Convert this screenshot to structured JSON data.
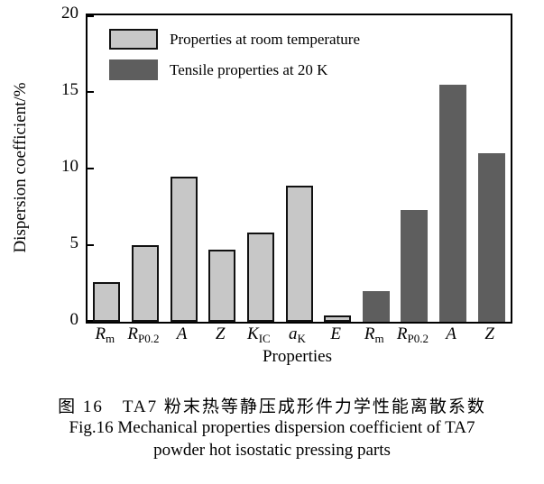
{
  "figure": {
    "caption_zh": "图 16　TA7 粉末热等静压成形件力学性能离散系数",
    "caption_en_line1": "Fig.16 Mechanical properties dispersion coefficient of TA7",
    "caption_en_line2": "powder hot isostatic pressing parts"
  },
  "chart_data": {
    "type": "bar",
    "title": "",
    "xlabel": "Properties",
    "ylabel": "Dispersion coefficient/%",
    "ylim": [
      0,
      20
    ],
    "yticks": [
      0,
      5,
      10,
      15,
      20
    ],
    "grid": false,
    "legend_position": "top-left-inside",
    "legend": [
      {
        "label": "Properties at room temperature",
        "fill": "#c7c7c7",
        "border": "#111111"
      },
      {
        "label": "Tensile properties at 20 K",
        "fill": "#5e5e5e",
        "border": "none"
      }
    ],
    "bars": [
      {
        "label_main": "R",
        "label_sub": "m",
        "value": 2.6,
        "series": 0
      },
      {
        "label_main": "R",
        "label_sub": "P0.2",
        "value": 5.0,
        "series": 0
      },
      {
        "label_main": "A",
        "label_sub": "",
        "value": 9.5,
        "series": 0
      },
      {
        "label_main": "Z",
        "label_sub": "",
        "value": 4.7,
        "series": 0
      },
      {
        "label_main": "K",
        "label_sub": "IC",
        "value": 5.8,
        "series": 0
      },
      {
        "label_main": "a",
        "label_sub": "K",
        "value": 8.9,
        "series": 0
      },
      {
        "label_main": "E",
        "label_sub": "",
        "value": 0.4,
        "series": 0
      },
      {
        "label_main": "R",
        "label_sub": "m",
        "value": 2.0,
        "series": 1
      },
      {
        "label_main": "R",
        "label_sub": "P0.2",
        "value": 7.3,
        "series": 1
      },
      {
        "label_main": "A",
        "label_sub": "",
        "value": 15.5,
        "series": 1
      },
      {
        "label_main": "Z",
        "label_sub": "",
        "value": 11.0,
        "series": 1
      }
    ]
  }
}
